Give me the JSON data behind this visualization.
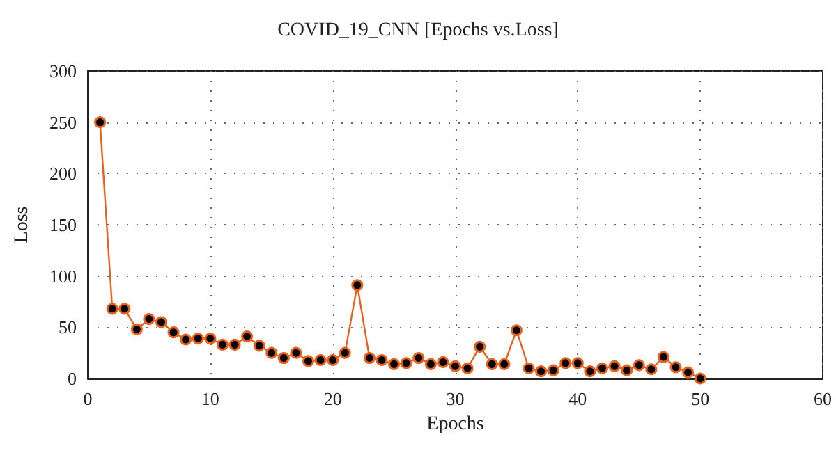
{
  "chart_data": {
    "type": "line",
    "title": "COVID_19_CNN [Epochs vs.Loss]",
    "xlabel": "Epochs",
    "ylabel": "Loss",
    "x": [
      1,
      2,
      3,
      4,
      5,
      6,
      7,
      8,
      9,
      10,
      11,
      12,
      13,
      14,
      15,
      16,
      17,
      18,
      19,
      20,
      21,
      22,
      23,
      24,
      25,
      26,
      27,
      28,
      29,
      30,
      31,
      32,
      33,
      34,
      35,
      36,
      37,
      38,
      39,
      40,
      41,
      42,
      43,
      44,
      45,
      46,
      47,
      48,
      49,
      50
    ],
    "series": [
      {
        "color": "#e8601c",
        "values": [
          250,
          68,
          68,
          48,
          58,
          55,
          45,
          38,
          39,
          39,
          33,
          33,
          41,
          32,
          25,
          20,
          25,
          17,
          18,
          18,
          25,
          91,
          20,
          18,
          14,
          15,
          20,
          14,
          16,
          12,
          10,
          31,
          14,
          14,
          47,
          10,
          7,
          8,
          15,
          15,
          7,
          10,
          12,
          8,
          13,
          9,
          21,
          11,
          6,
          0
        ]
      }
    ],
    "xlim": [
      0,
      60
    ],
    "xticks": [
      0,
      10,
      20,
      30,
      40,
      50,
      60
    ],
    "ylim": [
      0,
      300
    ],
    "yticks": [
      0,
      50,
      100,
      150,
      200,
      250,
      300
    ],
    "grid": true,
    "marker": "circle",
    "line_style": "solid"
  }
}
